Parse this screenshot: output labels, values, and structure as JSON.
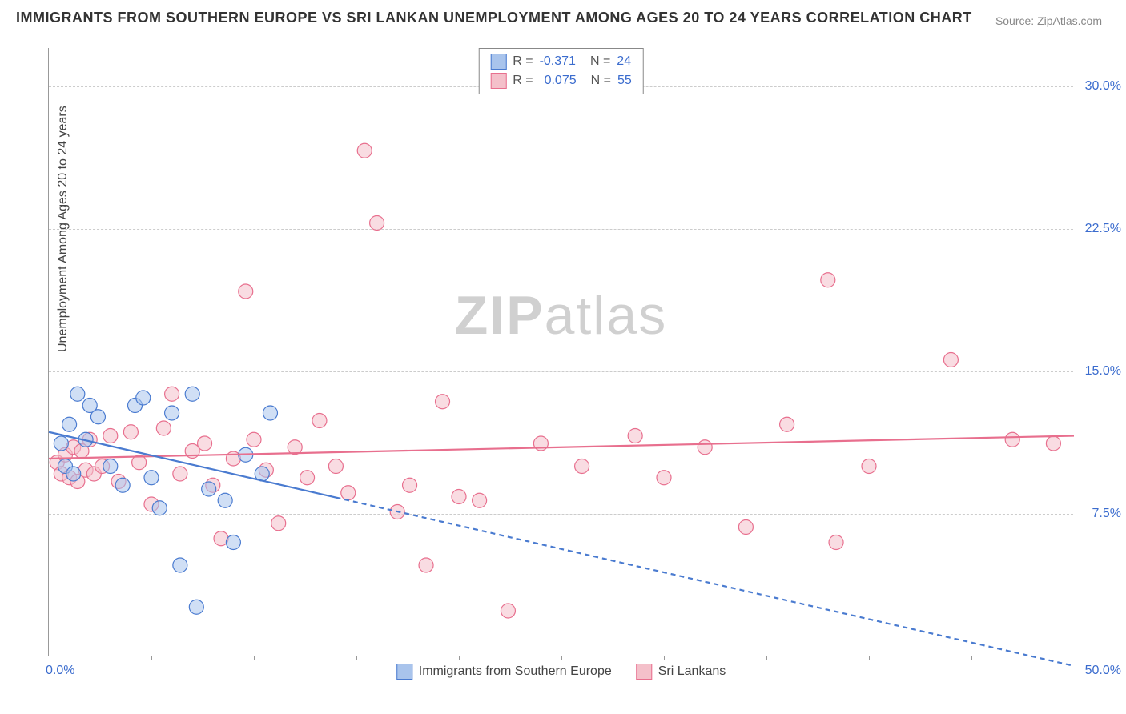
{
  "title": "IMMIGRANTS FROM SOUTHERN EUROPE VS SRI LANKAN UNEMPLOYMENT AMONG AGES 20 TO 24 YEARS CORRELATION CHART",
  "source": "Source: ZipAtlas.com",
  "watermark_a": "ZIP",
  "watermark_b": "atlas",
  "ylabel": "Unemployment Among Ages 20 to 24 years",
  "chart": {
    "type": "scatter",
    "xlim": [
      0,
      50
    ],
    "ylim": [
      0,
      32
    ],
    "grid_color": "#cccccc",
    "background_color": "#ffffff",
    "xticks": [
      5,
      10,
      15,
      20,
      25,
      30,
      35,
      40,
      45
    ],
    "yticks": [
      {
        "v": 7.5,
        "label": "7.5%"
      },
      {
        "v": 15.0,
        "label": "15.0%"
      },
      {
        "v": 22.5,
        "label": "22.5%"
      },
      {
        "v": 30.0,
        "label": "30.0%"
      }
    ],
    "x_min_label": "0.0%",
    "x_max_label": "50.0%",
    "marker_radius": 9,
    "marker_opacity": 0.55,
    "label_fontsize": 16,
    "axis_label_color": "#3b6cce"
  },
  "series": {
    "blue": {
      "name": "Immigrants from Southern Europe",
      "color_fill": "#a9c4ec",
      "color_stroke": "#4a7bd0",
      "R": "-0.371",
      "N": "24",
      "trend": {
        "x1": 0,
        "y1": 11.8,
        "x2": 50,
        "y2": -0.5,
        "solid_until_x": 14
      },
      "points": [
        [
          0.6,
          11.2
        ],
        [
          0.8,
          10.0
        ],
        [
          1.0,
          12.2
        ],
        [
          1.2,
          9.6
        ],
        [
          1.4,
          13.8
        ],
        [
          1.8,
          11.4
        ],
        [
          2.0,
          13.2
        ],
        [
          2.4,
          12.6
        ],
        [
          3.0,
          10.0
        ],
        [
          3.6,
          9.0
        ],
        [
          4.2,
          13.2
        ],
        [
          4.6,
          13.6
        ],
        [
          5.0,
          9.4
        ],
        [
          5.4,
          7.8
        ],
        [
          6.0,
          12.8
        ],
        [
          6.4,
          4.8
        ],
        [
          7.0,
          13.8
        ],
        [
          7.2,
          2.6
        ],
        [
          7.8,
          8.8
        ],
        [
          8.6,
          8.2
        ],
        [
          9.0,
          6.0
        ],
        [
          9.6,
          10.6
        ],
        [
          10.4,
          9.6
        ],
        [
          10.8,
          12.8
        ]
      ]
    },
    "pink": {
      "name": "Sri Lankans",
      "color_fill": "#f4c0ca",
      "color_stroke": "#e86f8e",
      "R": "0.075",
      "N": "55",
      "trend": {
        "x1": 0,
        "y1": 10.4,
        "x2": 50,
        "y2": 11.6,
        "solid_until_x": 50
      },
      "points": [
        [
          0.4,
          10.2
        ],
        [
          0.6,
          9.6
        ],
        [
          0.8,
          10.6
        ],
        [
          1.0,
          9.4
        ],
        [
          1.2,
          11.0
        ],
        [
          1.4,
          9.2
        ],
        [
          1.6,
          10.8
        ],
        [
          1.8,
          9.8
        ],
        [
          2.0,
          11.4
        ],
        [
          2.2,
          9.6
        ],
        [
          2.6,
          10.0
        ],
        [
          3.0,
          11.6
        ],
        [
          3.4,
          9.2
        ],
        [
          4.0,
          11.8
        ],
        [
          4.4,
          10.2
        ],
        [
          5.0,
          8.0
        ],
        [
          5.6,
          12.0
        ],
        [
          6.0,
          13.8
        ],
        [
          6.4,
          9.6
        ],
        [
          7.0,
          10.8
        ],
        [
          7.6,
          11.2
        ],
        [
          8.0,
          9.0
        ],
        [
          8.4,
          6.2
        ],
        [
          9.0,
          10.4
        ],
        [
          9.6,
          19.2
        ],
        [
          10.0,
          11.4
        ],
        [
          10.6,
          9.8
        ],
        [
          11.2,
          7.0
        ],
        [
          12.0,
          11.0
        ],
        [
          12.6,
          9.4
        ],
        [
          13.2,
          12.4
        ],
        [
          14.0,
          10.0
        ],
        [
          14.6,
          8.6
        ],
        [
          15.4,
          26.6
        ],
        [
          16.0,
          22.8
        ],
        [
          17.0,
          7.6
        ],
        [
          17.6,
          9.0
        ],
        [
          18.4,
          4.8
        ],
        [
          19.2,
          13.4
        ],
        [
          20.0,
          8.4
        ],
        [
          21.0,
          8.2
        ],
        [
          22.4,
          2.4
        ],
        [
          24.0,
          11.2
        ],
        [
          26.0,
          10.0
        ],
        [
          28.6,
          11.6
        ],
        [
          30.0,
          9.4
        ],
        [
          32.0,
          11.0
        ],
        [
          34.0,
          6.8
        ],
        [
          36.0,
          12.2
        ],
        [
          38.0,
          19.8
        ],
        [
          38.4,
          6.0
        ],
        [
          40.0,
          10.0
        ],
        [
          44.0,
          15.6
        ],
        [
          47.0,
          11.4
        ],
        [
          49.0,
          11.2
        ]
      ]
    }
  }
}
